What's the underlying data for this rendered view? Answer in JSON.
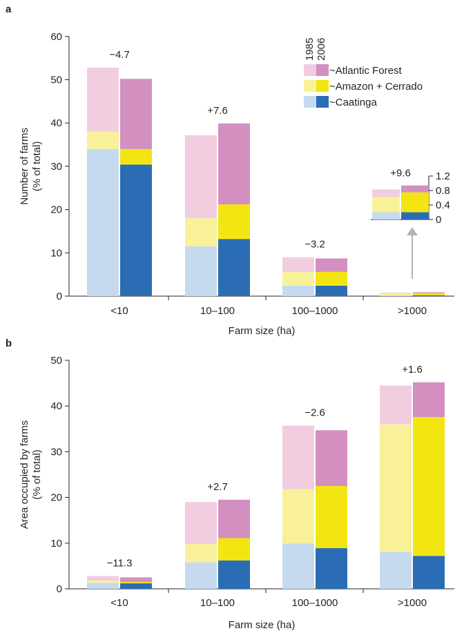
{
  "colors": {
    "caatinga_1985": "#c5daee",
    "caatinga_2006": "#2a6db5",
    "amazon_1985": "#f8f199",
    "amazon_2006": "#f2e512",
    "atlantic_1985": "#f2cde0",
    "atlantic_2006": "#d28fc0",
    "arrow": "#b3b3b3"
  },
  "legend": {
    "year_labels": [
      "1985",
      "2006"
    ],
    "entries": [
      {
        "label": "~Atlantic Forest",
        "key": "atlantic"
      },
      {
        "label": "~Amazon + Cerrado",
        "key": "amazon"
      },
      {
        "label": "~Caatinga",
        "key": "caatinga"
      }
    ]
  },
  "chart_data": [
    {
      "type": "bar",
      "stacked": true,
      "panel": "a",
      "categories": [
        "<10",
        "10–100",
        "100–1000",
        ">1000"
      ],
      "groups": [
        "1985",
        "2006"
      ],
      "series": [
        {
          "name": "~Caatinga",
          "values_1985": [
            34,
            11.5,
            2.4,
            0.2
          ],
          "values_2006": [
            30.4,
            13.2,
            2.4,
            0.2
          ]
        },
        {
          "name": "~Amazon + Cerrado",
          "values_1985": [
            4,
            6.5,
            3.2,
            0.4
          ],
          "values_2006": [
            3.6,
            8,
            3.2,
            0.5
          ]
        },
        {
          "name": "~Atlantic Forest",
          "values_1985": [
            14.8,
            19.2,
            3.4,
            0.2
          ],
          "values_2006": [
            16.2,
            18.7,
            3.1,
            0.2
          ]
        }
      ],
      "annotations": [
        "−4.7",
        "+7.6",
        "−3.2",
        "+9.6"
      ],
      "xlabel": "Farm size (ha)",
      "ylabel": "Number of farms\n(% of total)",
      "ylim": [
        0,
        60
      ],
      "yticks": [
        0,
        10,
        20,
        30,
        40,
        50,
        60
      ],
      "inset": {
        "category": ">1000",
        "ylim": [
          0,
          1.2
        ],
        "yticks": [
          "0",
          "0.4",
          "0.8",
          "1.2"
        ],
        "series": [
          {
            "name": "~Caatinga",
            "values_1985": [
              0.2
            ],
            "values_2006": [
              0.2
            ]
          },
          {
            "name": "~Amazon + Cerrado",
            "values_1985": [
              0.42
            ],
            "values_2006": [
              0.55
            ]
          },
          {
            "name": "~Atlantic Forest",
            "values_1985": [
              0.21
            ],
            "values_2006": [
              0.19
            ]
          }
        ]
      }
    },
    {
      "type": "bar",
      "stacked": true,
      "panel": "b",
      "categories": [
        "<10",
        "10–100",
        "100–1000",
        ">1000"
      ],
      "groups": [
        "1985",
        "2006"
      ],
      "series": [
        {
          "name": "~Caatinga",
          "values_1985": [
            1.3,
            5.8,
            9.9,
            8.1
          ],
          "values_2006": [
            1.2,
            6.2,
            8.9,
            7.2
          ]
        },
        {
          "name": "~Amazon + Cerrado",
          "values_1985": [
            0.5,
            4,
            11.9,
            27.9
          ],
          "values_2006": [
            0.3,
            4.9,
            13.6,
            30.4
          ]
        },
        {
          "name": "~Atlantic Forest",
          "values_1985": [
            1,
            9.2,
            13.9,
            8.5
          ],
          "values_2006": [
            1,
            8.4,
            12.2,
            7.6
          ]
        }
      ],
      "annotations": [
        "−11.3",
        "+2.7",
        "−2.6",
        "+1.6"
      ],
      "xlabel": "Farm size (ha)",
      "ylabel": "Area occupied by farms\n(% of total)",
      "ylim": [
        0,
        50
      ],
      "yticks": [
        0,
        10,
        20,
        30,
        40,
        50
      ]
    }
  ]
}
